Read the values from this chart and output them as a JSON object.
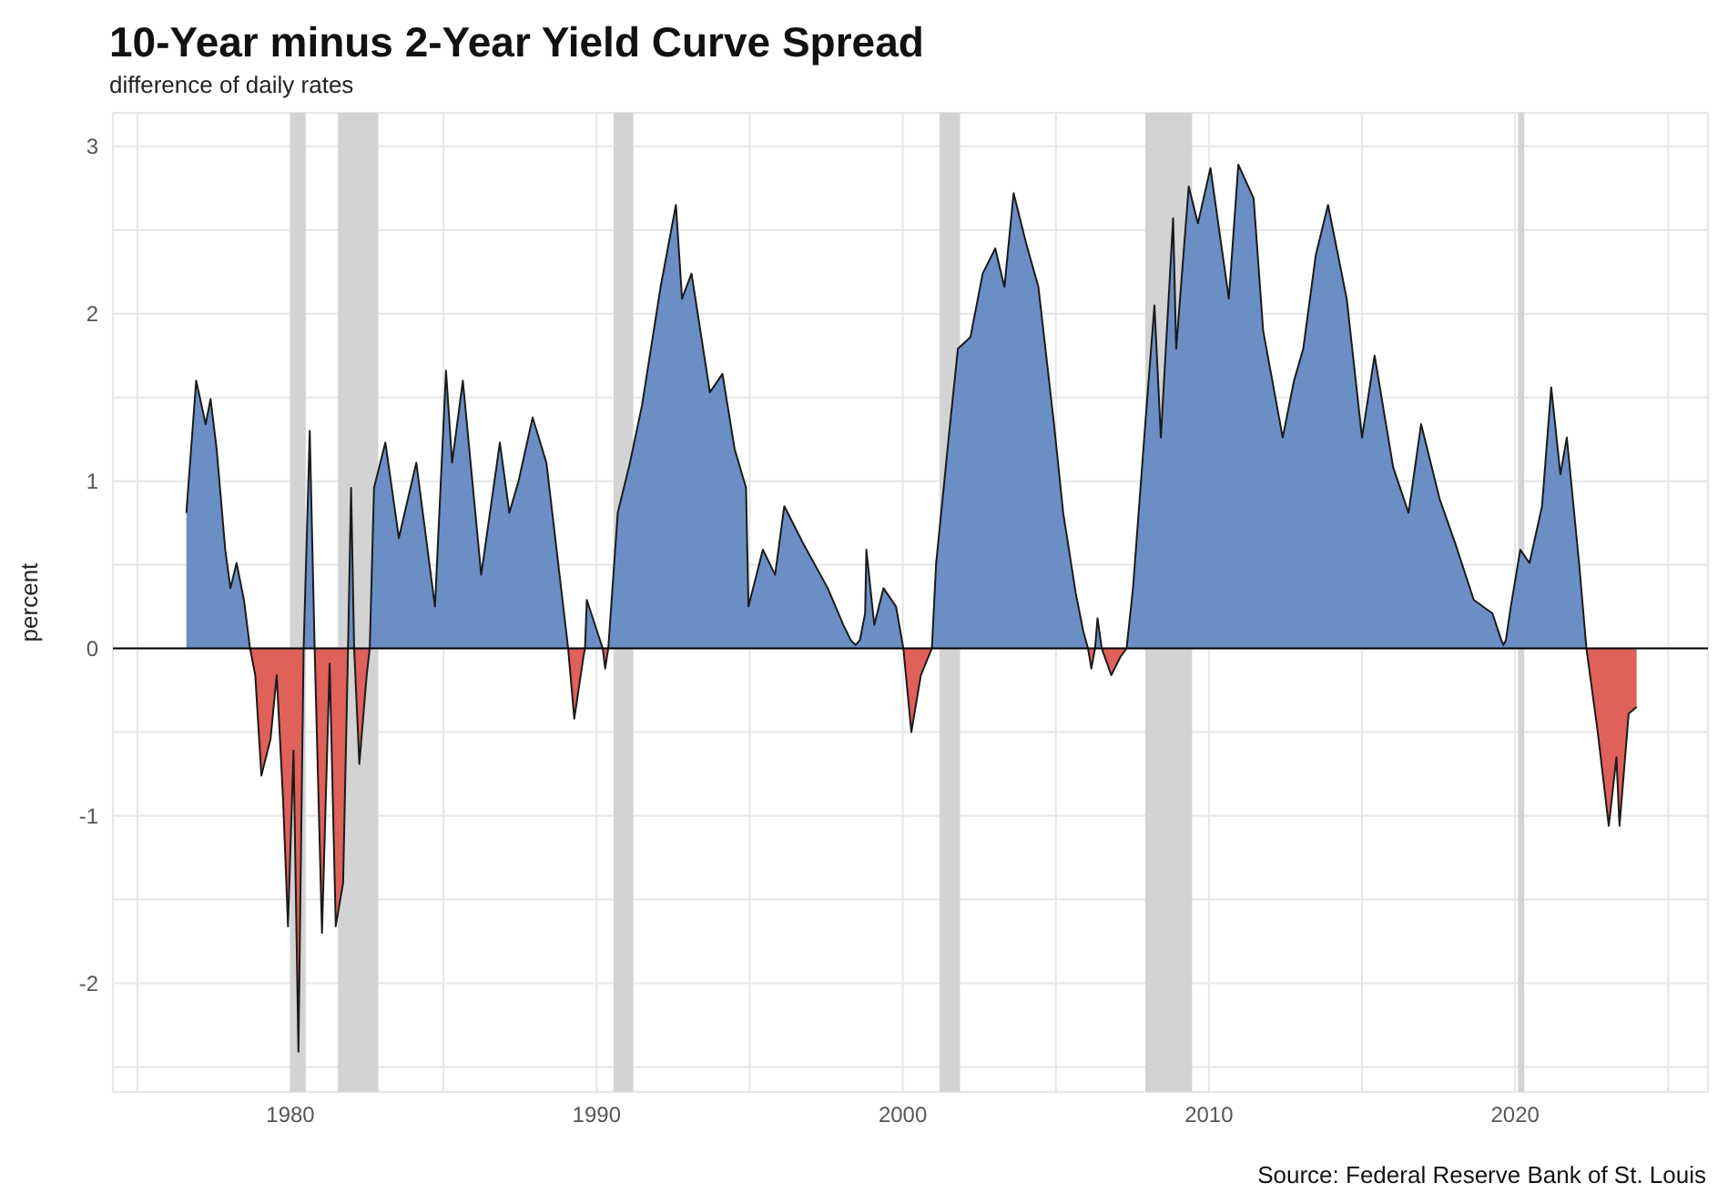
{
  "chart_data": {
    "type": "area",
    "title": "10-Year minus 2-Year Yield Curve Spread",
    "subtitle": "difference of daily rates",
    "ylabel": "percent",
    "annotations": [
      "Source: Federal Reserve Bank of St. Louis"
    ],
    "x": [
      1976.6,
      1976.92,
      1977.23,
      1977.39,
      1977.59,
      1977.87,
      1978.04,
      1978.24,
      1978.48,
      1978.68,
      1978.85,
      1979.05,
      1979.35,
      1979.55,
      1979.76,
      1979.92,
      1980.1,
      1980.26,
      1980.43,
      1980.63,
      1980.79,
      1981.03,
      1981.28,
      1981.48,
      1981.72,
      1981.88,
      1981.98,
      1982.08,
      1982.25,
      1982.49,
      1982.59,
      1982.73,
      1983.1,
      1983.54,
      1984.11,
      1984.72,
      1985.08,
      1985.28,
      1985.63,
      1986.23,
      1986.84,
      1987.15,
      1987.45,
      1987.91,
      1988.36,
      1989.07,
      1989.27,
      1989.57,
      1989.62,
      1989.68,
      1990.02,
      1990.2,
      1990.28,
      1990.38,
      1990.69,
      1991.09,
      1991.48,
      1992.09,
      1992.59,
      1992.79,
      1993.1,
      1993.7,
      1994.11,
      1994.51,
      1994.88,
      1994.96,
      1995.43,
      1995.83,
      1996.13,
      1996.74,
      1997.55,
      1998.06,
      1998.3,
      1998.46,
      1998.6,
      1998.77,
      1998.81,
      1999.07,
      1999.37,
      1999.78,
      2000.02,
      2000.28,
      2000.59,
      2000.95,
      2001.09,
      2001.5,
      2001.8,
      2002.21,
      2002.61,
      2003.02,
      2003.32,
      2003.62,
      2004.03,
      2004.43,
      2004.94,
      2005.24,
      2005.65,
      2005.9,
      2006.05,
      2006.16,
      2006.28,
      2006.36,
      2006.5,
      2006.81,
      2007.11,
      2007.31,
      2007.52,
      2007.92,
      2008.22,
      2008.43,
      2008.83,
      2008.93,
      2009.34,
      2009.64,
      2010.05,
      2010.65,
      2010.96,
      2011.46,
      2011.77,
      2012.41,
      2012.78,
      2013.08,
      2013.49,
      2013.89,
      2014.5,
      2015.0,
      2015.41,
      2016.02,
      2016.52,
      2016.93,
      2017.54,
      2018.04,
      2018.65,
      2019.26,
      2019.55,
      2019.62,
      2019.7,
      2019.86,
      2020.17,
      2020.47,
      2020.88,
      2021.18,
      2021.48,
      2021.69,
      2022.09,
      2022.33,
      2022.7,
      2023.06,
      2023.31,
      2023.41,
      2023.71,
      2023.97
    ],
    "series": [
      {
        "color": "#6b8fc5",
        "values": [
          0.81,
          1.6,
          1.34,
          1.49,
          1.19,
          0.59,
          0.36,
          0.51,
          0.29,
          0,
          null,
          null,
          null,
          null,
          null,
          null,
          null,
          null,
          0,
          1.3,
          0,
          null,
          null,
          null,
          null,
          0,
          0.96,
          0,
          null,
          null,
          0,
          0.96,
          1.23,
          0.66,
          1.11,
          0.25,
          1.66,
          1.11,
          1.6,
          0.44,
          1.23,
          0.81,
          1.0,
          1.38,
          1.11,
          0,
          null,
          null,
          0,
          0.29,
          0.1,
          0,
          null,
          0,
          0.81,
          1.11,
          1.45,
          2.16,
          2.65,
          2.09,
          2.24,
          1.53,
          1.64,
          1.19,
          0.96,
          0.25,
          0.59,
          0.44,
          0.85,
          0.63,
          0.36,
          0.14,
          0.05,
          0.02,
          0.05,
          0.21,
          0.59,
          0.14,
          0.36,
          0.25,
          0,
          null,
          null,
          0,
          0.51,
          1.26,
          1.79,
          1.86,
          2.24,
          2.39,
          2.16,
          2.72,
          2.42,
          2.16,
          1.34,
          0.81,
          0.33,
          0.1,
          0,
          null,
          0,
          0.18,
          0,
          null,
          null,
          0,
          0.36,
          1.34,
          2.05,
          1.26,
          2.57,
          1.79,
          2.76,
          2.54,
          2.87,
          2.09,
          2.89,
          2.69,
          1.9,
          1.26,
          1.6,
          1.79,
          2.35,
          2.65,
          2.09,
          1.26,
          1.75,
          1.08,
          0.81,
          1.34,
          0.89,
          0.63,
          0.29,
          0.21,
          0.05,
          0.02,
          0.05,
          0.25,
          0.59,
          0.51,
          0.85,
          1.56,
          1.04,
          1.26,
          0.51,
          0,
          null,
          null,
          null,
          null,
          null,
          null
        ]
      },
      {
        "color": "#e0605a",
        "values": [
          null,
          null,
          null,
          null,
          null,
          null,
          null,
          null,
          null,
          0,
          -0.16,
          -0.76,
          -0.54,
          -0.16,
          -0.91,
          -1.66,
          -0.61,
          -2.41,
          0,
          null,
          0,
          -1.7,
          -0.09,
          -1.66,
          -1.4,
          0,
          null,
          0,
          -0.69,
          -0.16,
          0,
          null,
          null,
          null,
          null,
          null,
          null,
          null,
          null,
          null,
          null,
          null,
          null,
          null,
          null,
          0,
          -0.42,
          -0.05,
          0,
          null,
          null,
          0,
          -0.12,
          0,
          null,
          null,
          null,
          null,
          null,
          null,
          null,
          null,
          null,
          null,
          null,
          null,
          null,
          null,
          null,
          null,
          null,
          null,
          null,
          null,
          null,
          null,
          null,
          null,
          null,
          null,
          0,
          -0.5,
          -0.16,
          0,
          null,
          null,
          null,
          null,
          null,
          null,
          null,
          null,
          null,
          null,
          null,
          null,
          null,
          null,
          0,
          -0.12,
          0,
          null,
          0,
          -0.16,
          -0.05,
          0,
          null,
          null,
          null,
          null,
          null,
          null,
          null,
          null,
          null,
          null,
          null,
          null,
          null,
          null,
          null,
          null,
          null,
          null,
          null,
          null,
          null,
          null,
          null,
          null,
          null,
          null,
          null,
          null,
          null,
          null,
          null,
          null,
          null,
          null,
          null,
          null,
          null,
          null,
          null,
          0,
          -0.5,
          -1.06,
          -0.65,
          -1.06,
          -0.39,
          -0.35
        ]
      }
    ],
    "xlim": [
      1974.2,
      2026.3
    ],
    "xticks": [
      {
        "value": 1975,
        "label": null
      },
      1980,
      {
        "value": 1985,
        "label": null
      },
      1990,
      {
        "value": 1995,
        "label": null
      },
      2000,
      {
        "value": 2005,
        "label": null
      },
      2010,
      {
        "value": 2015,
        "label": null
      },
      2020,
      {
        "value": 2025,
        "label": null
      }
    ],
    "ylim": [
      -2.65,
      3.2
    ],
    "yticks": [
      {
        "value": -2.5,
        "label": null
      },
      -2,
      {
        "value": -1.5,
        "label": null
      },
      -1,
      {
        "value": -0.5,
        "label": null
      },
      0,
      {
        "value": 0.5,
        "label": null
      },
      1,
      {
        "value": 1.5,
        "label": null
      },
      2,
      {
        "value": 2.5,
        "label": null
      },
      3
    ],
    "grid": true,
    "ref_lines": [
      {
        "axis": "y",
        "value": 0,
        "color": "#000000"
      }
    ],
    "bands": [
      {
        "axis": "x",
        "from": 1980.0,
        "to": 1980.5,
        "color": "#d3d3d3"
      },
      {
        "axis": "x",
        "from": 1981.55,
        "to": 1982.87,
        "color": "#d3d3d3"
      },
      {
        "axis": "x",
        "from": 1990.55,
        "to": 1991.2,
        "color": "#d3d3d3"
      },
      {
        "axis": "x",
        "from": 2001.2,
        "to": 2001.87,
        "color": "#d3d3d3"
      },
      {
        "axis": "x",
        "from": 2007.92,
        "to": 2009.45,
        "color": "#d3d3d3"
      },
      {
        "axis": "x",
        "from": 2020.1,
        "to": 2020.3,
        "color": "#d3d3d3"
      }
    ]
  }
}
